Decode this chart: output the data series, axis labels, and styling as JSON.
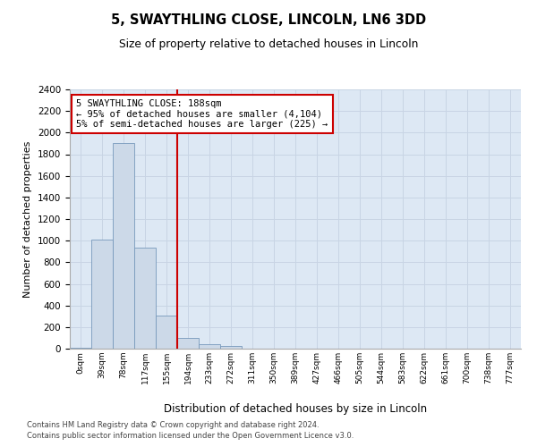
{
  "title1": "5, SWAYTHLING CLOSE, LINCOLN, LN6 3DD",
  "title2": "Size of property relative to detached houses in Lincoln",
  "xlabel": "Distribution of detached houses by size in Lincoln",
  "ylabel": "Number of detached properties",
  "annotation_line1": "5 SWAYTHLING CLOSE: 188sqm",
  "annotation_line2": "← 95% of detached houses are smaller (4,104)",
  "annotation_line3": "5% of semi-detached houses are larger (225) →",
  "categories": [
    "0sqm",
    "39sqm",
    "78sqm",
    "117sqm",
    "155sqm",
    "194sqm",
    "233sqm",
    "272sqm",
    "311sqm",
    "350sqm",
    "389sqm",
    "427sqm",
    "466sqm",
    "505sqm",
    "544sqm",
    "583sqm",
    "622sqm",
    "661sqm",
    "700sqm",
    "738sqm",
    "777sqm"
  ],
  "bar_values": [
    10,
    1010,
    1900,
    935,
    310,
    100,
    45,
    25,
    0,
    0,
    0,
    0,
    0,
    0,
    0,
    0,
    0,
    0,
    0,
    0,
    0
  ],
  "bar_color": "#ccd9e8",
  "bar_edge_color": "#7799bb",
  "vline_x": 5.0,
  "vline_color": "#cc0000",
  "annotation_box_color": "#cc0000",
  "ylim": [
    0,
    2400
  ],
  "yticks": [
    0,
    200,
    400,
    600,
    800,
    1000,
    1200,
    1400,
    1600,
    1800,
    2000,
    2200,
    2400
  ],
  "grid_color": "#c8d4e4",
  "background_color": "#dde8f4",
  "footer1": "Contains HM Land Registry data © Crown copyright and database right 2024.",
  "footer2": "Contains public sector information licensed under the Open Government Licence v3.0."
}
